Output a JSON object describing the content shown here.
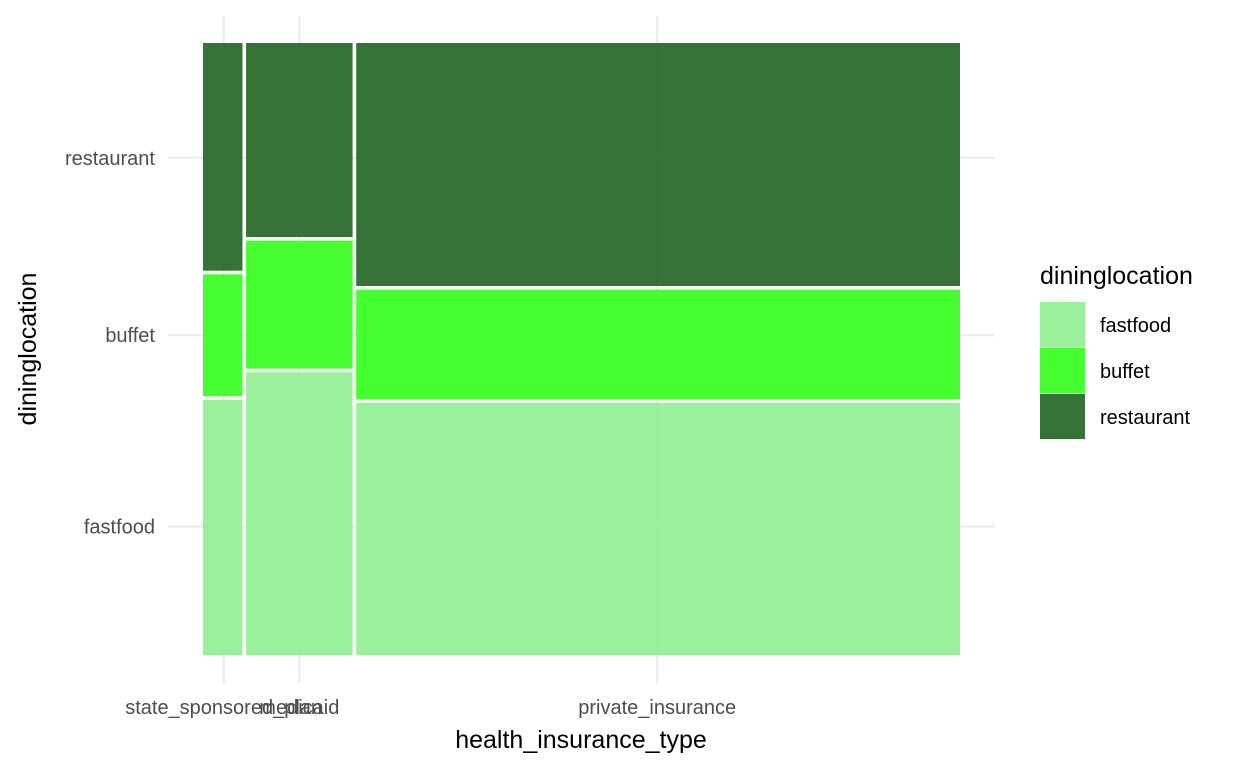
{
  "chart_data": {
    "type": "mosaic",
    "xlabel": "health_insurance_type",
    "ylabel": "dininglocation",
    "y_tick_labels": [
      "fastfood",
      "buffet",
      "restaurant"
    ],
    "columns": [
      {
        "category": "state_sponsored_plan",
        "width_share": 0.0545,
        "segments": [
          {
            "level": "fastfood",
            "share": 0.42
          },
          {
            "level": "buffet",
            "share": 0.205
          },
          {
            "level": "restaurant",
            "share": 0.375
          }
        ]
      },
      {
        "category": "medicaid",
        "width_share": 0.1455,
        "segments": [
          {
            "level": "fastfood",
            "share": 0.465
          },
          {
            "level": "buffet",
            "share": 0.215
          },
          {
            "level": "restaurant",
            "share": 0.32
          }
        ]
      },
      {
        "category": "private_insurance",
        "width_share": 0.8,
        "segments": [
          {
            "level": "fastfood",
            "share": 0.415
          },
          {
            "level": "buffet",
            "share": 0.185
          },
          {
            "level": "restaurant",
            "share": 0.4
          }
        ]
      }
    ],
    "legend": {
      "title": "dininglocation",
      "position": "right",
      "entries": [
        {
          "label": "fastfood",
          "color": "#90EE90"
        },
        {
          "label": "buffet",
          "color": "#33FF1A"
        },
        {
          "label": "restaurant",
          "color": "#1F6420"
        }
      ]
    },
    "grid": true,
    "fill_opacity": 0.9,
    "theme": "minimal"
  }
}
